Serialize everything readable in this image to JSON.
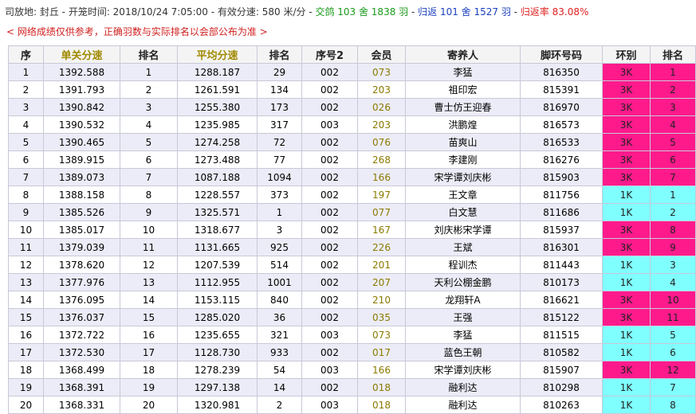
{
  "header": {
    "segments": [
      "司放地: 封丘 - 开笼时间: 2018/10/24 7:05:00 - 有效分速: 580 米/分 - ",
      "交鸽 103 舍 1838 羽",
      " - ",
      "归返 101 舍 1527 羽",
      " - ",
      "归返率 83.08%"
    ],
    "notice": "< 网络成绩仅供参考，正确羽数与实际排名以会部公布为准 >"
  },
  "table": {
    "columns": [
      "序",
      "单关分速",
      "排名",
      "平均分速",
      "排名",
      "序号2",
      "会员",
      "寄养人",
      "脚环号码",
      "环别",
      "排名"
    ],
    "rows": [
      [
        "1",
        "1392.588",
        "1",
        "1288.187",
        "29",
        "002",
        "073",
        "李猛",
        "816350",
        "3K",
        "1"
      ],
      [
        "2",
        "1391.793",
        "2",
        "1261.591",
        "134",
        "002",
        "203",
        "祖印宏",
        "815391",
        "3K",
        "2"
      ],
      [
        "3",
        "1390.842",
        "3",
        "1255.380",
        "173",
        "002",
        "026",
        "曹士仿王迎春",
        "816970",
        "3K",
        "3"
      ],
      [
        "4",
        "1390.532",
        "4",
        "1235.985",
        "317",
        "003",
        "203",
        "洪鹏煌",
        "816573",
        "3K",
        "4"
      ],
      [
        "5",
        "1390.465",
        "5",
        "1274.258",
        "72",
        "002",
        "076",
        "苗爽山",
        "816533",
        "3K",
        "5"
      ],
      [
        "6",
        "1389.915",
        "6",
        "1273.488",
        "77",
        "002",
        "268",
        "李建刚",
        "816276",
        "3K",
        "6"
      ],
      [
        "7",
        "1389.073",
        "7",
        "1087.188",
        "1094",
        "002",
        "166",
        "宋学谭刘庆彬",
        "815903",
        "3K",
        "7"
      ],
      [
        "8",
        "1388.158",
        "8",
        "1228.557",
        "373",
        "002",
        "197",
        "王文章",
        "811756",
        "1K",
        "1"
      ],
      [
        "9",
        "1385.526",
        "9",
        "1325.571",
        "1",
        "002",
        "077",
        "白文慧",
        "811686",
        "1K",
        "2"
      ],
      [
        "10",
        "1385.017",
        "10",
        "1318.677",
        "3",
        "002",
        "167",
        "刘庆彬宋学谭",
        "815937",
        "3K",
        "8"
      ],
      [
        "11",
        "1379.039",
        "11",
        "1131.665",
        "925",
        "002",
        "226",
        "王斌",
        "816301",
        "3K",
        "9"
      ],
      [
        "12",
        "1378.620",
        "12",
        "1207.539",
        "514",
        "002",
        "201",
        "程训杰",
        "811443",
        "1K",
        "3"
      ],
      [
        "13",
        "1377.976",
        "13",
        "1112.955",
        "1001",
        "002",
        "207",
        "天利公棚金鹏",
        "810173",
        "1K",
        "4"
      ],
      [
        "14",
        "1376.095",
        "14",
        "1153.115",
        "840",
        "002",
        "210",
        "龙翔轩A",
        "816621",
        "3K",
        "10"
      ],
      [
        "15",
        "1376.037",
        "15",
        "1285.020",
        "36",
        "002",
        "035",
        "王强",
        "815122",
        "3K",
        "11"
      ],
      [
        "16",
        "1372.722",
        "16",
        "1235.655",
        "321",
        "003",
        "073",
        "李猛",
        "811515",
        "1K",
        "5"
      ],
      [
        "17",
        "1372.530",
        "17",
        "1128.730",
        "933",
        "002",
        "017",
        "蓝色王朝",
        "810582",
        "1K",
        "6"
      ],
      [
        "18",
        "1368.499",
        "18",
        "1278.239",
        "54",
        "003",
        "166",
        "宋学谭刘庆彬",
        "815907",
        "3K",
        "12"
      ],
      [
        "19",
        "1368.391",
        "19",
        "1297.138",
        "14",
        "002",
        "018",
        "融利达",
        "810298",
        "1K",
        "7"
      ],
      [
        "20",
        "1368.331",
        "20",
        "1320.981",
        "2",
        "003",
        "018",
        "融利达",
        "810263",
        "1K",
        "8"
      ]
    ]
  }
}
